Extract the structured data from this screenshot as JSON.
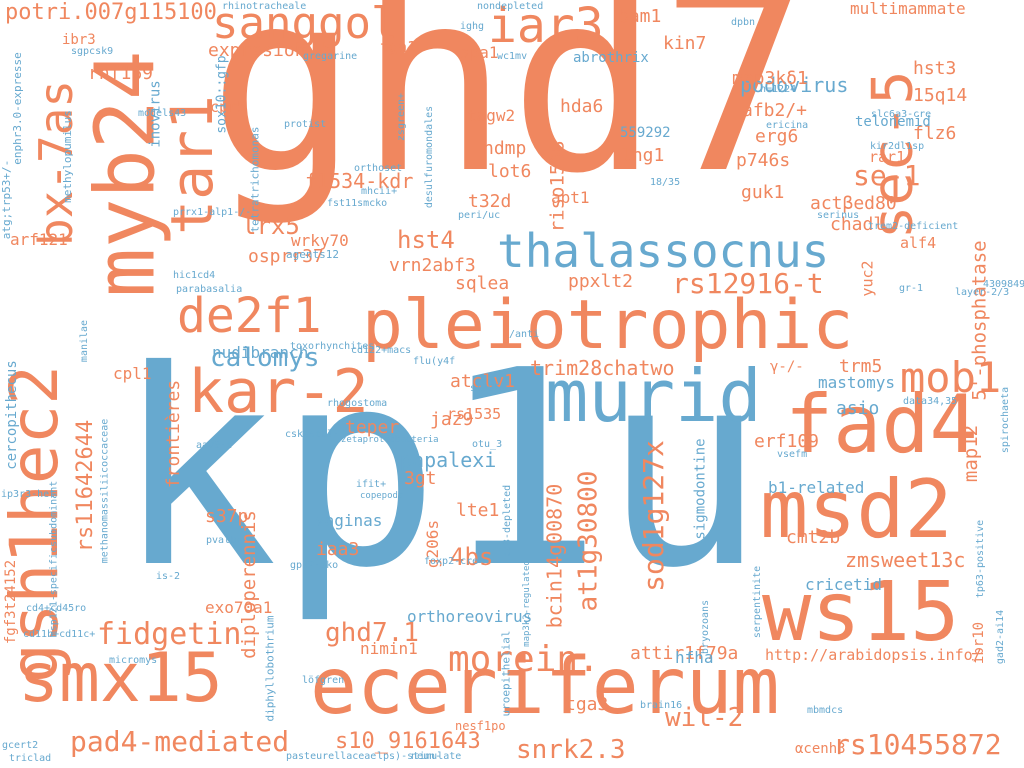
{
  "palette": {
    "orange": "#f0875f",
    "blue": "#67a9cf"
  },
  "words": [
    {
      "text": "ghd7",
      "color": "orange"
    },
    {
      "text": "kp1u",
      "color": "blue"
    },
    {
      "text": "eceriferum",
      "color": "orange"
    },
    {
      "text": "pleiotrophic",
      "color": "orange"
    },
    {
      "text": "murid",
      "color": "blue"
    },
    {
      "text": "myb24",
      "color": "orange"
    },
    {
      "text": "gsh1hec2",
      "color": "orange"
    },
    {
      "text": "ws15",
      "color": "orange"
    },
    {
      "text": "msd2",
      "color": "orange"
    },
    {
      "text": "fad4",
      "color": "orange"
    },
    {
      "text": "smx15",
      "color": "orange"
    },
    {
      "text": "sec-5",
      "color": "orange"
    },
    {
      "text": "kar-2",
      "color": "orange"
    },
    {
      "text": "tar1",
      "color": "orange"
    },
    {
      "text": "bx-7as",
      "color": "orange"
    },
    {
      "text": "thalassocnus",
      "color": "blue"
    },
    {
      "text": "sanggol",
      "color": "orange"
    },
    {
      "text": "iar3",
      "color": "orange"
    },
    {
      "text": "de2f1",
      "color": "orange"
    },
    {
      "text": "mob1",
      "color": "orange"
    },
    {
      "text": "fidgetin",
      "color": "orange"
    },
    {
      "text": "morein.",
      "color": "orange"
    },
    {
      "text": "pad4-mediated",
      "color": "orange"
    },
    {
      "text": "snrk2.3",
      "color": "orange"
    },
    {
      "text": "wil-2",
      "color": "orange"
    },
    {
      "text": "rs10455872",
      "color": "orange"
    },
    {
      "text": "s10_9161643",
      "color": "orange"
    },
    {
      "text": "rs11642644",
      "color": "orange"
    },
    {
      "text": "calomys",
      "color": "blue"
    },
    {
      "text": "rs12916-t",
      "color": "orange"
    },
    {
      "text": "se-1",
      "color": "orange"
    },
    {
      "text": "sod1g127x",
      "color": "orange"
    },
    {
      "text": "at1g30800",
      "color": "orange"
    },
    {
      "text": "bcin14g00870",
      "color": "orange"
    },
    {
      "text": "ghd7.1",
      "color": "orange"
    },
    {
      "text": "4bs",
      "color": "orange"
    },
    {
      "text": "hst4",
      "color": "orange"
    },
    {
      "text": "lrx5",
      "color": "orange"
    },
    {
      "text": "potri.007g115100",
      "color": "orange"
    },
    {
      "text": "5'-phosphatase",
      "color": "orange"
    },
    {
      "text": "zmsweet13c",
      "color": "orange"
    },
    {
      "text": "riso1508",
      "color": "orange"
    },
    {
      "text": "podovirus",
      "color": "blue"
    },
    {
      "text": "f1534-kdr",
      "color": "orange"
    },
    {
      "text": "trim28chatwo",
      "color": "orange"
    },
    {
      "text": "papalexi",
      "color": "blue"
    },
    {
      "text": "diploperennis",
      "color": "orange"
    },
    {
      "text": "frontières",
      "color": "orange"
    },
    {
      "text": "attir1f79a",
      "color": "orange"
    },
    {
      "text": "http://arabidopsis.info/",
      "color": "orange"
    },
    {
      "text": "multimammate",
      "color": "orange"
    },
    {
      "text": "exprssion",
      "color": "orange"
    },
    {
      "text": "hdmp",
      "color": "orange"
    },
    {
      "text": "lot6",
      "color": "orange"
    },
    {
      "text": "t32d",
      "color": "orange"
    },
    {
      "text": "tagw2",
      "color": "orange"
    },
    {
      "text": "lng1",
      "color": "orange"
    },
    {
      "text": "hda6",
      "color": "orange"
    },
    {
      "text": "bam1",
      "color": "orange"
    },
    {
      "text": "kin7",
      "color": "orange"
    },
    {
      "text": "spa1",
      "color": "orange"
    },
    {
      "text": "tga1",
      "color": "orange"
    },
    {
      "text": "rnf169",
      "color": "orange"
    },
    {
      "text": "cpr5",
      "color": "orange"
    },
    {
      "text": "map3kδ1",
      "color": "orange"
    },
    {
      "text": "afb2/+",
      "color": "orange"
    },
    {
      "text": "erg6",
      "color": "orange"
    },
    {
      "text": "p746s",
      "color": "orange"
    },
    {
      "text": "guk1",
      "color": "orange"
    },
    {
      "text": "actβed80",
      "color": "orange"
    },
    {
      "text": "chadl",
      "color": "orange"
    },
    {
      "text": "hst3",
      "color": "orange"
    },
    {
      "text": "15q14",
      "color": "orange"
    },
    {
      "text": "flz6",
      "color": "orange"
    },
    {
      "text": "osprr37",
      "color": "orange"
    },
    {
      "text": "vrn2abf3",
      "color": "orange"
    },
    {
      "text": "sqlea",
      "color": "orange"
    },
    {
      "text": "ppxlt2",
      "color": "orange"
    },
    {
      "text": "atclv1",
      "color": "orange"
    },
    {
      "text": "teper",
      "color": "orange"
    },
    {
      "text": "jaz9",
      "color": "orange"
    },
    {
      "text": "3gt",
      "color": "orange"
    },
    {
      "text": "lte1",
      "color": "orange"
    },
    {
      "text": "iaa3",
      "color": "orange"
    },
    {
      "text": "s37p",
      "color": "orange"
    },
    {
      "text": "vaginas",
      "color": "blue"
    },
    {
      "text": "nimin1",
      "color": "orange"
    },
    {
      "text": "orthoreovirus",
      "color": "blue"
    },
    {
      "text": "exo70a1",
      "color": "orange"
    },
    {
      "text": "tga3",
      "color": "orange"
    },
    {
      "text": "hfha",
      "color": "blue"
    },
    {
      "text": "cmt2b",
      "color": "orange"
    },
    {
      "text": "cricetid",
      "color": "blue"
    },
    {
      "text": "erf109",
      "color": "orange"
    },
    {
      "text": "b1-related",
      "color": "blue"
    },
    {
      "text": "map12",
      "color": "orange"
    },
    {
      "text": "trm5",
      "color": "orange"
    },
    {
      "text": "asio",
      "color": "blue"
    },
    {
      "text": "mastomys",
      "color": "blue"
    },
    {
      "text": "nudibranch",
      "color": "blue"
    },
    {
      "text": "wrky70",
      "color": "orange"
    },
    {
      "text": "arf121",
      "color": "orange"
    },
    {
      "text": "cpl1",
      "color": "orange"
    },
    {
      "text": "rs1535",
      "color": "orange"
    },
    {
      "text": "g206s",
      "color": "orange"
    },
    {
      "text": "apt1",
      "color": "orange"
    },
    {
      "text": "alf4",
      "color": "orange"
    },
    {
      "text": "yuc2",
      "color": "orange"
    },
    {
      "text": "rar1",
      "color": "orange"
    },
    {
      "text": "sigmodontine",
      "color": "blue"
    },
    {
      "text": "ibr10",
      "color": "orange"
    },
    {
      "text": "559292",
      "color": "blue"
    },
    {
      "text": "abrothrix",
      "color": "blue"
    },
    {
      "text": "telonemid",
      "color": "blue"
    },
    {
      "text": "inovirus",
      "color": "blue"
    },
    {
      "text": "sox10::gfp",
      "color": "blue"
    },
    {
      "text": "cercopithecus",
      "color": "blue"
    },
    {
      "text": "fgf3t24152",
      "color": "orange"
    },
    {
      "text": "ibr3",
      "color": "orange"
    },
    {
      "text": "αcenh3",
      "color": "orange"
    },
    {
      "text": "nesf1po",
      "color": "orange"
    },
    {
      "text": "γ-/-",
      "color": "orange"
    },
    {
      "text": "rhinotracheale",
      "color": "blue"
    },
    {
      "text": "nondepleted",
      "color": "blue"
    },
    {
      "text": "wc1mv",
      "color": "blue"
    },
    {
      "text": "ighg",
      "color": "blue"
    },
    {
      "text": "gregarine",
      "color": "blue"
    },
    {
      "text": "sgpcsk9",
      "color": "blue"
    },
    {
      "text": "models43",
      "color": "blue"
    },
    {
      "text": "protist",
      "color": "blue"
    },
    {
      "text": "tetratrichomonas",
      "color": "blue"
    },
    {
      "text": "methylopumilus",
      "color": "blue"
    },
    {
      "text": "enphr3.0-expresse",
      "color": "blue"
    },
    {
      "text": "atg;trp53+/-",
      "color": "blue"
    },
    {
      "text": "prrx1-alp1-/-",
      "color": "blue"
    },
    {
      "text": "hic1cd4",
      "color": "blue"
    },
    {
      "text": "parabasalia",
      "color": "blue"
    },
    {
      "text": "agents12",
      "color": "blue"
    },
    {
      "text": "cd122+macs",
      "color": "blue"
    },
    {
      "text": "toxorhynchites",
      "color": "blue"
    },
    {
      "text": "rhogostoma",
      "color": "blue"
    },
    {
      "text": "cskascbl-/-",
      "color": "blue"
    },
    {
      "text": "zetaproteobacteria",
      "color": "blue"
    },
    {
      "text": "aav9-c",
      "color": "blue"
    },
    {
      "text": "ifit+",
      "color": "blue"
    },
    {
      "text": "copepods",
      "color": "blue"
    },
    {
      "text": "pvalb+",
      "color": "blue"
    },
    {
      "text": "gps2-ako",
      "color": "blue"
    },
    {
      "text": "is-2",
      "color": "blue"
    },
    {
      "text": "cd4+cd45ro",
      "color": "blue"
    },
    {
      "text": "cd11b+cd11c+",
      "color": "blue"
    },
    {
      "text": "micromys",
      "color": "blue"
    },
    {
      "text": "löfgren",
      "color": "blue"
    },
    {
      "text": "diphyllobothrium",
      "color": "blue"
    },
    {
      "text": "uroepithelial",
      "color": "blue"
    },
    {
      "text": "brain16",
      "color": "blue"
    },
    {
      "text": "bryozoans",
      "color": "blue"
    },
    {
      "text": "mbmdcs",
      "color": "blue"
    },
    {
      "text": "gcert2",
      "color": "blue"
    },
    {
      "text": "triclad",
      "color": "blue"
    },
    {
      "text": "lps)-stimulate",
      "color": "blue"
    },
    {
      "text": "pasteurellaceae",
      "color": "blue"
    },
    {
      "text": "neun-",
      "color": "blue"
    },
    {
      "text": "manilae",
      "color": "blue"
    },
    {
      "text": "methanomassiliicoccaceae",
      "color": "blue"
    },
    {
      "text": "ip3r3-het",
      "color": "blue"
    },
    {
      "text": "msp121-specificsubdominant",
      "color": "blue"
    },
    {
      "text": "cd8-depleted",
      "color": "blue"
    },
    {
      "text": "map3k2-regulated",
      "color": "blue"
    },
    {
      "text": "foxp2-cre",
      "color": "blue"
    },
    {
      "text": "otu_3",
      "color": "blue"
    },
    {
      "text": "st395",
      "color": "blue"
    },
    {
      "text": "vsefm",
      "color": "blue"
    },
    {
      "text": "serpentinite",
      "color": "blue"
    },
    {
      "text": "tp63-positive",
      "color": "blue"
    },
    {
      "text": "gad2-ai14",
      "color": "blue"
    },
    {
      "text": "spirochaeta",
      "color": "blue"
    },
    {
      "text": "data34,35",
      "color": "blue"
    },
    {
      "text": "layer-2/3",
      "color": "blue"
    },
    {
      "text": "4309849",
      "color": "blue"
    },
    {
      "text": "gr-1",
      "color": "blue"
    },
    {
      "text": "trem2-deficient",
      "color": "blue"
    },
    {
      "text": "serinus",
      "color": "blue"
    },
    {
      "text": "kir2dl1sp",
      "color": "blue"
    },
    {
      "text": "slc6a3-cre",
      "color": "blue"
    },
    {
      "text": "n=1224",
      "color": "blue"
    },
    {
      "text": "ericina",
      "color": "blue"
    },
    {
      "text": "dpbn",
      "color": "blue"
    },
    {
      "text": "18/35",
      "color": "blue"
    },
    {
      "text": "peri/uc",
      "color": "blue"
    },
    {
      "text": "fst11smcko",
      "color": "blue"
    },
    {
      "text": "mhcii+",
      "color": "blue"
    },
    {
      "text": "orthoset",
      "color": "blue"
    },
    {
      "text": "zsgreen+",
      "color": "blue"
    },
    {
      "text": "desulfuromondales",
      "color": "blue"
    },
    {
      "text": "/anti",
      "color": "blue"
    },
    {
      "text": "flu(y4f",
      "color": "blue"
    }
  ]
}
